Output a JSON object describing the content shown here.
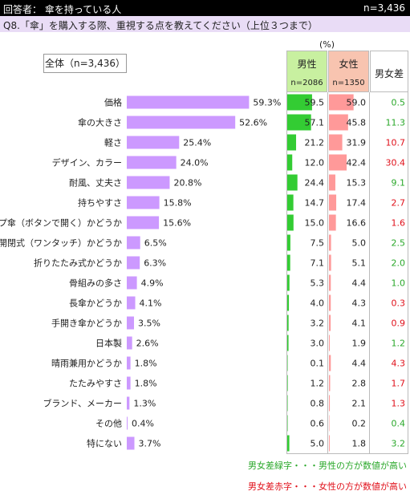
{
  "header": {
    "title": "回答者： 傘を持っている人",
    "n_total": "n=3,436"
  },
  "question": "Q8.「傘」を購入する際、重視する点を教えてください（上位３つまで）",
  "unit_label": "(%)",
  "total_label": "全体（n=3,436）",
  "columns": {
    "male": {
      "label": "男性",
      "n": "n=2086"
    },
    "female": {
      "label": "女性",
      "n": "n=1350"
    },
    "diff": {
      "label": "男女差"
    }
  },
  "colors": {
    "bar": "#cc99ff",
    "male_bar": "#33cc33",
    "female_bar": "#ff9999",
    "diff_male_higher": "#2aa82a",
    "diff_female_higher": "#e0101a"
  },
  "chart_data": {
    "type": "bar",
    "orientation": "horizontal",
    "categories": [
      "価格",
      "傘の大きさ",
      "軽さ",
      "デザイン、カラー",
      "耐風、丈夫さ",
      "持ちやすさ",
      "ジャンプ傘（ボタンで開く）かどうか",
      "自動開閉式（ワンタッチ）かどうか",
      "折りたたみ式かどうか",
      "骨組みの多さ",
      "長傘かどうか",
      "手開き傘かどうか",
      "日本製",
      "晴雨兼用かどうか",
      "たたみやすさ",
      "ブランド、メーカー",
      "その他",
      "特にない"
    ],
    "series": [
      {
        "name": "全体（n=3,436）",
        "values": [
          59.3,
          52.6,
          25.4,
          24.0,
          20.8,
          15.8,
          15.6,
          6.5,
          6.3,
          4.9,
          4.1,
          3.5,
          2.6,
          1.8,
          1.8,
          1.3,
          0.4,
          3.7
        ]
      },
      {
        "name": "男性",
        "values": [
          59.5,
          57.1,
          21.2,
          12.0,
          24.4,
          14.7,
          15.0,
          7.5,
          7.1,
          5.3,
          4.0,
          3.2,
          3.0,
          0.1,
          1.2,
          0.8,
          0.6,
          5.0
        ]
      },
      {
        "name": "女性",
        "values": [
          59.0,
          45.8,
          31.9,
          42.4,
          15.3,
          17.4,
          16.6,
          5.0,
          5.1,
          4.4,
          4.3,
          4.1,
          1.9,
          4.4,
          2.8,
          2.1,
          0.2,
          1.8
        ]
      },
      {
        "name": "男女差",
        "values": [
          0.5,
          11.3,
          10.7,
          30.4,
          9.1,
          2.7,
          1.6,
          2.5,
          2.0,
          1.0,
          0.3,
          0.9,
          1.2,
          4.3,
          1.7,
          1.3,
          0.4,
          3.2
        ]
      }
    ],
    "diff_higher": [
      "male",
      "male",
      "female",
      "female",
      "male",
      "female",
      "female",
      "male",
      "male",
      "male",
      "female",
      "female",
      "male",
      "female",
      "female",
      "female",
      "male",
      "male"
    ],
    "xlim": [
      0,
      100
    ]
  },
  "legend": {
    "green_note": "男女差緑字・・・男性の方が数値が高い",
    "red_note": "男女差赤字・・・女性の方が数値が高い"
  }
}
